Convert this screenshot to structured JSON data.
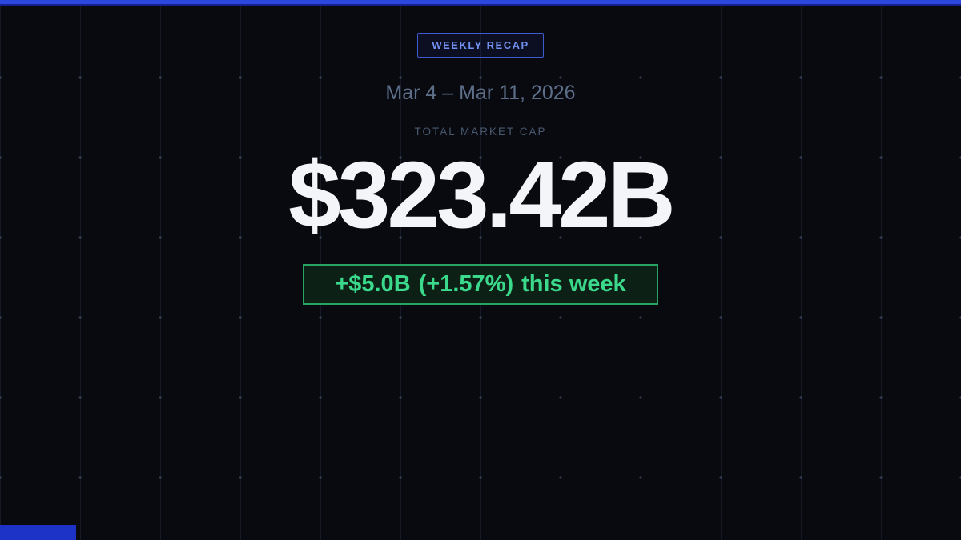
{
  "recap": {
    "badge_label": "WEEKLY RECAP",
    "date_range": "Mar 4 – Mar 11, 2026",
    "metric_label": "TOTAL MARKET CAP",
    "market_cap": "$323.42B",
    "change": {
      "absolute": "+$5.0B",
      "percent": "(+1.57%)",
      "period": "this week"
    }
  },
  "colors": {
    "background": "#080a10",
    "accent_blue": "#2c47dd",
    "accent_blue_dark": "#161f8a",
    "bottom_accent": "#1d33c8",
    "chip_border": "#3e5bd0",
    "chip_text": "#7190f2",
    "date_text": "#5c6e88",
    "label_text": "#49596f",
    "value_text": "#f3f5f9",
    "positive_green": "#3bd98b",
    "green_border": "#27a263",
    "green_bg": "#0c2016"
  }
}
